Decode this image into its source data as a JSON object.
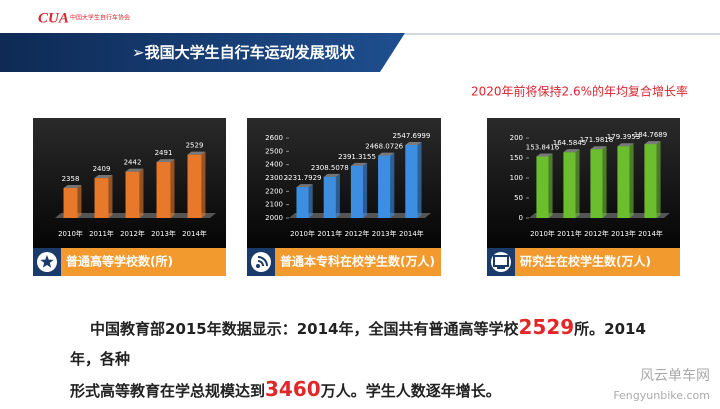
{
  "header": {
    "logo": "CUA",
    "logo_caption": "中国大学生自行车协会",
    "title": "➢我国大学生自行车运动发展现状"
  },
  "subtitle": "2020年前将保持2.6%的年均复合增长率",
  "chart_data": [
    {
      "type": "bar",
      "title": "普通高等学校数(所)",
      "categories": [
        "2010年",
        "2011年",
        "2012年",
        "2013年",
        "2014年"
      ],
      "values": [
        2358,
        2409,
        2442,
        2491,
        2529
      ],
      "color": "#e8782a",
      "icon": "star"
    },
    {
      "type": "bar",
      "title": "普通本专科在校学生数(万人)",
      "categories": [
        "2010年",
        "2011年",
        "2012年",
        "2013年",
        "2014年"
      ],
      "values": [
        2231.7929,
        2308.5078,
        2391.3155,
        2468.0726,
        2547.6999
      ],
      "color": "#3d8ee0",
      "ylim": [
        2000,
        2600
      ],
      "yticks": [
        2000,
        2100,
        2200,
        2300,
        2400,
        2500,
        2600
      ],
      "icon": "signal"
    },
    {
      "type": "bar",
      "title": "研究生在校学生数(万人)",
      "categories": [
        "2010年",
        "2011年",
        "2012年",
        "2013年",
        "2014年"
      ],
      "values": [
        153.8416,
        164.5845,
        171.9818,
        179.3953,
        184.7689
      ],
      "color": "#6bbf2e",
      "ylim": [
        0,
        200
      ],
      "yticks": [
        0,
        50,
        100,
        150,
        200
      ],
      "icon": "monitor"
    }
  ],
  "paragraph": [
    [
      {
        "text": "中国教育部2015年数据显示：2014年，全国共有普通高等学校"
      },
      {
        "text": "2529",
        "emphasis": true
      },
      {
        "text": "所。2014年，各种"
      }
    ],
    [
      {
        "text": "形式高等教育在学总规模达到"
      },
      {
        "text": "3460",
        "emphasis": true
      },
      {
        "text": "万人。学生人数逐年增长。"
      }
    ]
  ],
  "watermark": {
    "name": "风云单车网",
    "url": "Fengyunbike.com"
  }
}
